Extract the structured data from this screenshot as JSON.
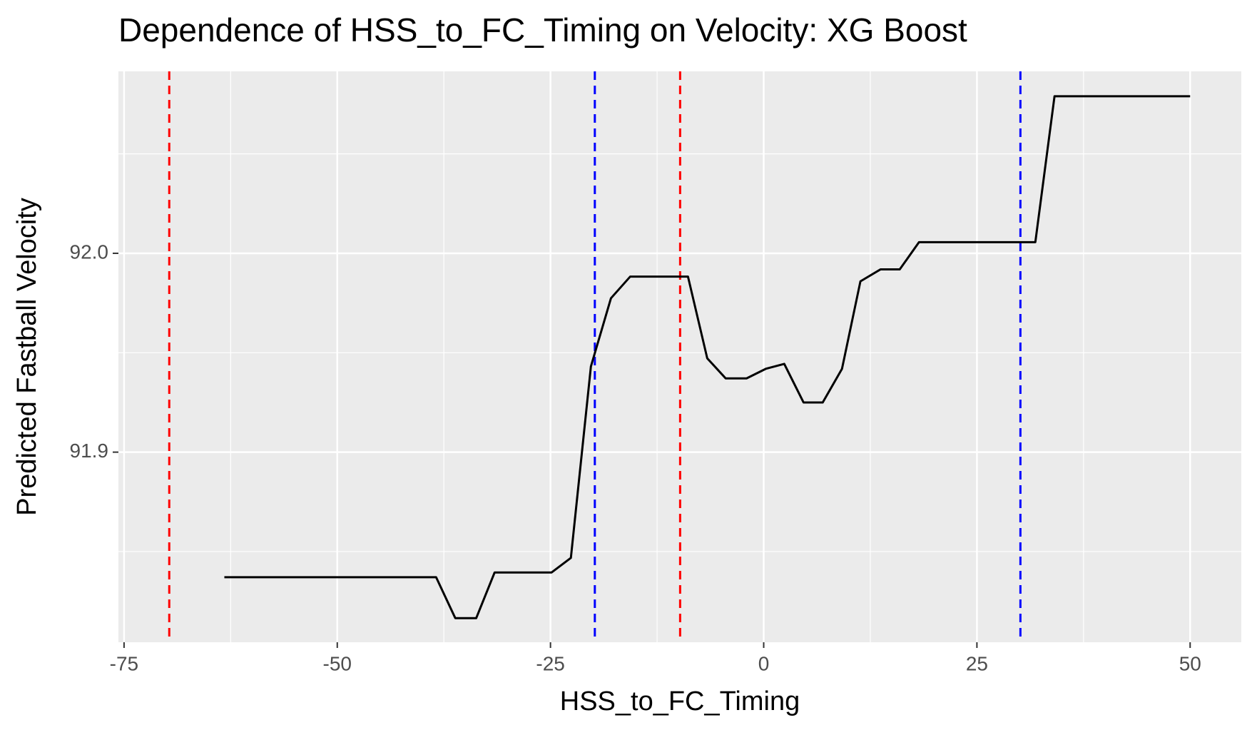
{
  "chart_data": {
    "type": "line",
    "title": "Dependence of HSS_to_FC_Timing on Velocity: XG Boost",
    "x_label": "HSS_to_FC_Timing",
    "y_label": "Predicted Fastball Velocity",
    "series": [
      {
        "color": "#000000",
        "x": [
          -63.24,
          -38.41,
          -36.16,
          -33.71,
          -31.55,
          -24.87,
          -22.61,
          -20.26,
          -17.91,
          -15.65,
          -8.88,
          -6.62,
          -4.46,
          -2.01,
          0.24,
          2.41,
          4.67,
          6.92,
          9.18,
          11.34,
          13.69,
          15.95,
          18.21,
          31.85,
          34.1,
          50.0
        ],
        "values": [
          91.8371,
          91.8371,
          91.8165,
          91.8165,
          91.8395,
          91.8395,
          91.8468,
          91.9431,
          91.9774,
          91.9883,
          91.9883,
          91.9472,
          91.9371,
          91.9371,
          91.9419,
          91.9444,
          91.925,
          91.925,
          91.9419,
          91.9859,
          91.9919,
          91.9919,
          92.0056,
          92.0056,
          92.079,
          92.079
        ]
      }
    ],
    "vlines": [
      {
        "x": -69.7,
        "color": "#ff0000"
      },
      {
        "x": -9.8,
        "color": "#ff0000"
      },
      {
        "x": -19.8,
        "color": "#0000ff"
      },
      {
        "x": 30.1,
        "color": "#0000ff"
      }
    ],
    "xlim": [
      -75.66,
      56.0
    ],
    "ylim": [
      91.8044,
      92.0915
    ],
    "xticks": [
      -75,
      -50,
      -25,
      0,
      25,
      50
    ],
    "yticks": [
      {
        "value": 91.9,
        "label": "91.9"
      },
      {
        "value": 92.0,
        "label": "92.0"
      }
    ],
    "minor_xticks": [
      -62.5,
      -37.5,
      -12.5,
      12.5,
      37.5
    ],
    "minor_yticks": [
      91.85,
      91.95,
      92.05
    ],
    "grid": true
  }
}
